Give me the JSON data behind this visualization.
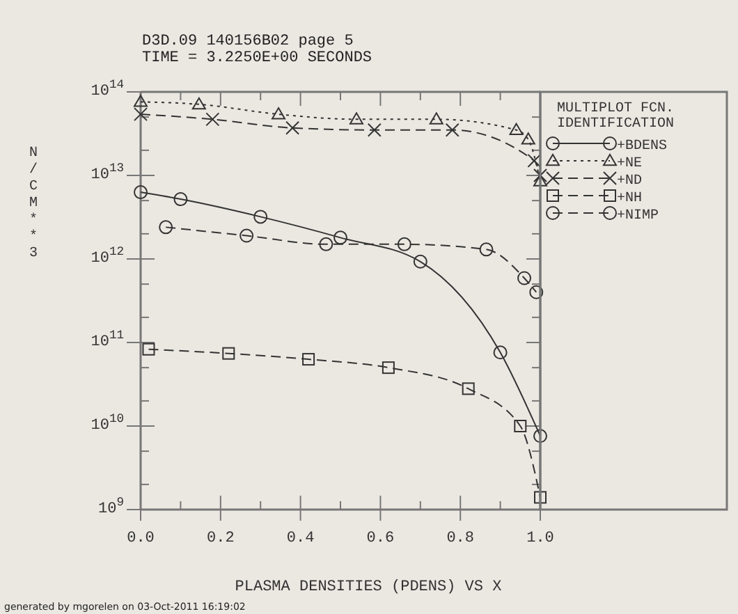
{
  "chart_data": {
    "type": "line",
    "title": "D3D.09 140156B02 page 5",
    "subtitle": "TIME = 3.2250E+00 SECONDS",
    "xlabel": "PLASMA DENSITIES (PDENS) VS X",
    "ylabel": "N/CM**3",
    "legend_title": "MULTIPLOT FCN.\nIDENTIFICATION",
    "annotations": [
      "generated by mgorelen on 03-Oct-2011 16:19:02"
    ],
    "log": "y",
    "grid": false,
    "legend": "right",
    "xlim": [
      0,
      1
    ],
    "ylim": [
      1000000000.0,
      100000000000000.0
    ],
    "xticks": [
      {
        "value": 0,
        "label": "0.0"
      },
      {
        "value": 0.1,
        "label": null
      },
      {
        "value": 0.2,
        "label": "0.2"
      },
      {
        "value": 0.3,
        "label": null
      },
      {
        "value": 0.4,
        "label": "0.4"
      },
      {
        "value": 0.5,
        "label": null
      },
      {
        "value": 0.6,
        "label": "0.6"
      },
      {
        "value": 0.7,
        "label": null
      },
      {
        "value": 0.8,
        "label": "0.8"
      },
      {
        "value": 0.9,
        "label": null
      },
      {
        "value": 1,
        "label": "1.0"
      }
    ],
    "yticks": [
      {
        "value": 1000000000.0,
        "label": "10$^{9}$"
      },
      {
        "value": 2000000000.0,
        "label": null
      },
      {
        "value": 5000000000.0,
        "label": null
      },
      {
        "value": 10000000000.0,
        "label": "10$^{10}$"
      },
      {
        "value": 20000000000.0,
        "label": null
      },
      {
        "value": 50000000000.0,
        "label": null
      },
      {
        "value": 100000000000.0,
        "label": "10$^{11}$"
      },
      {
        "value": 200000000000.0,
        "label": null
      },
      {
        "value": 500000000000.0,
        "label": null
      },
      {
        "value": 1000000000000.0,
        "label": "10$^{12}$"
      },
      {
        "value": 2000000000000.0,
        "label": null
      },
      {
        "value": 5000000000000.0,
        "label": null
      },
      {
        "value": 10000000000000.0,
        "label": "10$^{13}$"
      },
      {
        "value": 20000000000000.0,
        "label": null
      },
      {
        "value": 50000000000000.0,
        "label": null
      },
      {
        "value": 100000000000000.0,
        "label": "10$^{14}$"
      }
    ],
    "series": [
      {
        "name": "+BDENS",
        "color": "#333333",
        "marker": "circle",
        "line_style": "solid",
        "x": [
          0,
          0.1,
          0.3,
          0.5,
          0.7,
          0.9,
          1.0
        ],
        "values": [
          6300000000000.0,
          5200000000000.0,
          3200000000000.0,
          1800000000000.0,
          930000000000.0,
          76000000000.0,
          7600000000.0
        ]
      },
      {
        "name": "+NE",
        "color": "#333333",
        "marker": "triangle",
        "line_style": "dotted",
        "x": [
          0,
          0.146,
          0.345,
          0.54,
          0.74,
          0.94,
          0.97,
          1.0
        ],
        "values": [
          76000000000000.0,
          71000000000000.0,
          54000000000000.0,
          47000000000000.0,
          47000000000000.0,
          35000000000000.0,
          27000000000000.0,
          8500000000000.0
        ]
      },
      {
        "name": "+ND",
        "color": "#333333",
        "marker": "cross",
        "line_style": "dashed",
        "x": [
          0,
          0.18,
          0.38,
          0.585,
          0.78,
          0.985,
          1.0
        ],
        "values": [
          54000000000000.0,
          47000000000000.0,
          37000000000000.0,
          35000000000000.0,
          35000000000000.0,
          15000000000000.0,
          10000000000000.0
        ]
      },
      {
        "name": "+NH",
        "color": "#333333",
        "marker": "square",
        "line_style": "dashed",
        "x": [
          0.02,
          0.22,
          0.42,
          0.62,
          0.82,
          0.95,
          1.0
        ],
        "values": [
          83000000000.0,
          74000000000.0,
          63000000000.0,
          50000000000.0,
          28000000000.0,
          10000000000.0,
          1400000000.0
        ]
      },
      {
        "name": "+NIMP",
        "color": "#333333",
        "marker": "circle",
        "line_style": "dashed",
        "x": [
          0.063,
          0.265,
          0.464,
          0.66,
          0.865,
          0.96,
          0.99
        ],
        "values": [
          2400000000000.0,
          1900000000000.0,
          1500000000000.0,
          1500000000000.0,
          1300000000000.0,
          590000000000.0,
          400000000000.0
        ]
      }
    ]
  }
}
